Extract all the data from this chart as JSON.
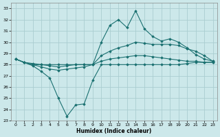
{
  "xlabel": "Humidex (Indice chaleur)",
  "xlim": [
    -0.5,
    23.5
  ],
  "ylim": [
    23,
    33.5
  ],
  "yticks": [
    23,
    24,
    25,
    26,
    27,
    28,
    29,
    30,
    31,
    32,
    33
  ],
  "xticks": [
    0,
    1,
    2,
    3,
    4,
    5,
    6,
    7,
    8,
    9,
    10,
    11,
    12,
    13,
    14,
    15,
    16,
    17,
    18,
    19,
    20,
    21,
    22,
    23
  ],
  "bg_color": "#cce8ea",
  "grid_color": "#aacdd0",
  "line_color": "#1a7070",
  "series": {
    "s1": [
      28.5,
      28.2,
      28.0,
      27.8,
      27.6,
      27.5,
      27.6,
      27.7,
      27.8,
      28.0,
      30.0,
      31.5,
      32.0,
      31.3,
      32.8,
      31.2,
      30.5,
      30.1,
      30.3,
      30.0,
      29.5,
      28.9,
      28.5,
      28.3
    ],
    "s2": [
      28.5,
      28.2,
      28.0,
      28.0,
      27.9,
      27.8,
      27.9,
      28.0,
      28.0,
      28.0,
      28.8,
      29.2,
      29.5,
      29.7,
      30.0,
      29.9,
      29.8,
      29.8,
      29.8,
      29.7,
      29.4,
      29.2,
      28.8,
      28.3
    ],
    "s3": [
      28.5,
      28.2,
      28.1,
      28.0,
      28.0,
      28.0,
      28.0,
      28.0,
      28.0,
      28.0,
      28.3,
      28.5,
      28.6,
      28.7,
      28.8,
      28.8,
      28.7,
      28.6,
      28.5,
      28.4,
      28.3,
      28.3,
      28.2,
      28.2
    ],
    "s4": [
      28.5,
      28.2,
      27.9,
      27.4,
      26.8,
      25.0,
      23.4,
      24.4,
      24.5,
      26.6,
      28.0,
      28.0,
      28.0,
      28.0,
      28.0,
      28.0,
      28.0,
      28.0,
      28.0,
      28.0,
      28.1,
      28.2,
      28.2,
      28.2
    ]
  }
}
